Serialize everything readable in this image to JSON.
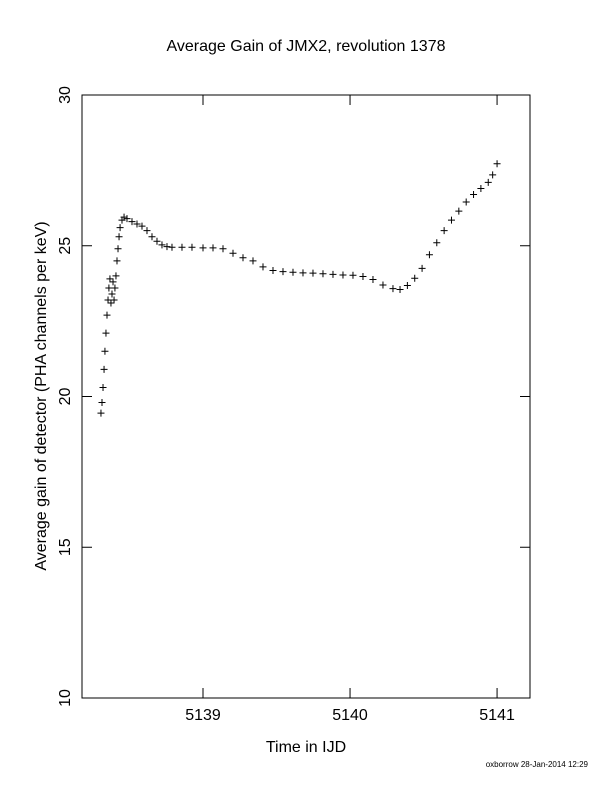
{
  "chart_data": {
    "type": "scatter",
    "title": "Average Gain of JMX2, revolution 1378",
    "x_label": "Time in IJD",
    "y_label": "Average gain of detector (PHA channels per keV)",
    "footer": "oxborrow 28-Jan-2014 12:29",
    "xlim": [
      5138.177,
      5141.224
    ],
    "ylim": [
      10,
      30
    ],
    "xticks": [
      5139,
      5140,
      5141
    ],
    "yticks": [
      10,
      15,
      20,
      25,
      30
    ],
    "color": "#000000",
    "marker": "+",
    "x": [
      5138.306,
      5138.313,
      5138.32,
      5138.327,
      5138.333,
      5138.34,
      5138.347,
      5138.354,
      5138.36,
      5138.367,
      5138.374,
      5138.381,
      5138.388,
      5138.395,
      5138.401,
      5138.408,
      5138.415,
      5138.422,
      5138.429,
      5138.436,
      5138.449,
      5138.463,
      5138.483,
      5138.517,
      5138.551,
      5138.585,
      5138.619,
      5138.653,
      5138.687,
      5138.721,
      5138.755,
      5138.789,
      5138.857,
      5138.925,
      5139.0,
      5139.068,
      5139.136,
      5139.204,
      5139.272,
      5139.34,
      5139.408,
      5139.476,
      5139.544,
      5139.612,
      5139.68,
      5139.748,
      5139.816,
      5139.884,
      5139.952,
      5140.02,
      5140.088,
      5140.156,
      5140.224,
      5140.292,
      5140.34,
      5140.39,
      5140.44,
      5140.49,
      5140.54,
      5140.59,
      5140.64,
      5140.69,
      5140.74,
      5140.79,
      5140.84,
      5140.89,
      5140.94,
      5140.97,
      5141.0
    ],
    "values": [
      19.45,
      19.8,
      20.3,
      20.9,
      21.5,
      22.1,
      22.7,
      23.2,
      23.6,
      23.9,
      23.1,
      23.4,
      23.8,
      23.2,
      23.6,
      24.0,
      24.5,
      24.9,
      25.3,
      25.6,
      25.85,
      25.95,
      25.9,
      25.8,
      25.72,
      25.65,
      25.5,
      25.3,
      25.15,
      25.03,
      24.97,
      24.95,
      24.95,
      24.95,
      24.93,
      24.93,
      24.9,
      24.75,
      24.6,
      24.5,
      24.3,
      24.18,
      24.14,
      24.12,
      24.1,
      24.09,
      24.07,
      24.05,
      24.03,
      24.02,
      23.98,
      23.88,
      23.7,
      23.58,
      23.55,
      23.68,
      23.92,
      24.25,
      24.7,
      25.1,
      25.5,
      25.85,
      26.15,
      26.45,
      26.7,
      26.9,
      27.1,
      27.35,
      27.72
    ]
  }
}
